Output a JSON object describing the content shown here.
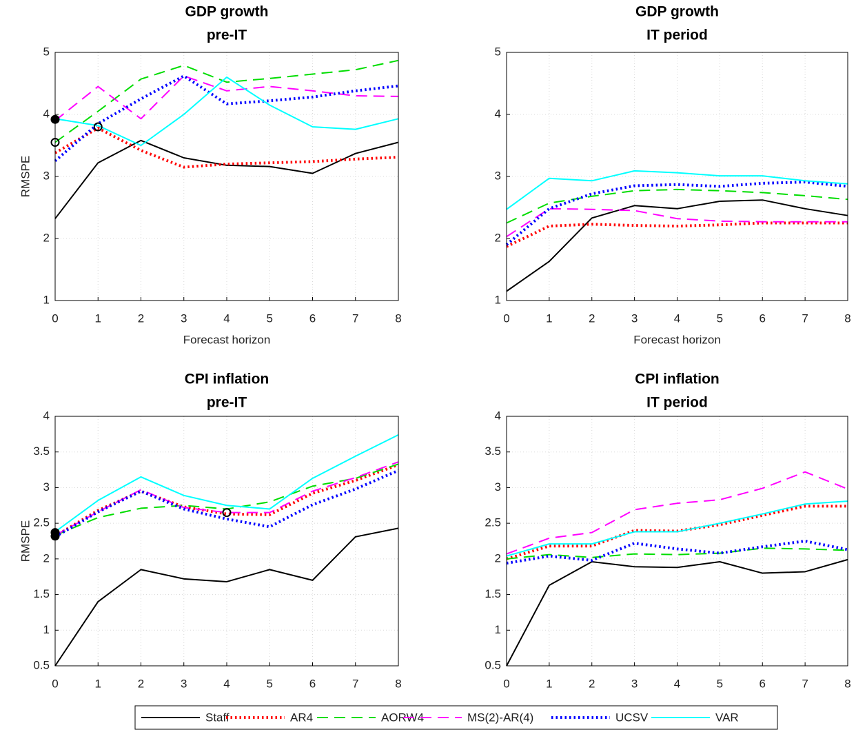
{
  "chart_data": [
    {
      "type": "line",
      "title": "GDP growth",
      "subtitle": "pre-IT",
      "xlabel": "Forecast horizon",
      "ylabel": "RMSPE",
      "x": [
        0,
        1,
        2,
        3,
        4,
        5,
        6,
        7,
        8
      ],
      "xlim": [
        0,
        8
      ],
      "xticks": [
        0,
        1,
        2,
        3,
        4,
        5,
        6,
        7,
        8
      ],
      "ylim": [
        1,
        5
      ],
      "yticks": [
        1,
        2,
        3,
        4,
        5
      ],
      "grid": true,
      "series": [
        {
          "values": [
            2.32,
            3.22,
            3.58,
            3.3,
            3.18,
            3.16,
            3.05,
            3.37,
            3.55
          ]
        },
        {
          "values": [
            3.38,
            3.78,
            3.42,
            3.15,
            3.2,
            3.22,
            3.24,
            3.28,
            3.31
          ]
        },
        {
          "values": [
            3.55,
            4.05,
            4.57,
            4.79,
            4.52,
            4.58,
            4.65,
            4.72,
            4.87
          ]
        },
        {
          "values": [
            3.9,
            4.45,
            3.93,
            4.62,
            4.38,
            4.45,
            4.38,
            4.3,
            4.29
          ]
        },
        {
          "values": [
            3.25,
            3.85,
            4.25,
            4.62,
            4.17,
            4.22,
            4.28,
            4.38,
            4.46
          ]
        },
        {
          "values": [
            3.93,
            3.82,
            3.5,
            4.0,
            4.6,
            4.15,
            3.8,
            3.76,
            3.93
          ]
        }
      ],
      "markers": [
        {
          "x": 0,
          "y": 3.92,
          "filled": true
        },
        {
          "x": 0,
          "y": 3.55,
          "filled": false
        },
        {
          "x": 1,
          "y": 3.8,
          "filled": false
        }
      ]
    },
    {
      "type": "line",
      "title": "GDP growth",
      "subtitle": "IT period",
      "xlabel": "Forecast horizon",
      "x": [
        0,
        1,
        2,
        3,
        4,
        5,
        6,
        7,
        8
      ],
      "xlim": [
        0,
        8
      ],
      "xticks": [
        0,
        1,
        2,
        3,
        4,
        5,
        6,
        7,
        8
      ],
      "ylim": [
        1,
        5
      ],
      "yticks": [
        1,
        2,
        3,
        4,
        5
      ],
      "grid": true,
      "series": [
        {
          "values": [
            1.15,
            1.63,
            2.33,
            2.53,
            2.48,
            2.6,
            2.62,
            2.48,
            2.37
          ]
        },
        {
          "values": [
            1.87,
            2.2,
            2.23,
            2.21,
            2.2,
            2.22,
            2.25,
            2.25,
            2.25
          ]
        },
        {
          "values": [
            2.25,
            2.57,
            2.68,
            2.77,
            2.79,
            2.77,
            2.74,
            2.69,
            2.63
          ]
        },
        {
          "values": [
            2.03,
            2.48,
            2.47,
            2.45,
            2.32,
            2.28,
            2.27,
            2.27,
            2.27
          ]
        },
        {
          "values": [
            1.9,
            2.48,
            2.72,
            2.85,
            2.87,
            2.84,
            2.89,
            2.91,
            2.84
          ]
        },
        {
          "values": [
            2.47,
            2.97,
            2.93,
            3.09,
            3.06,
            3.01,
            3.01,
            2.93,
            2.88
          ]
        }
      ]
    },
    {
      "type": "line",
      "title": "CPI inflation",
      "subtitle": "pre-IT",
      "ylabel": "RMSPE",
      "x": [
        0,
        1,
        2,
        3,
        4,
        5,
        6,
        7,
        8
      ],
      "xlim": [
        0,
        8
      ],
      "xticks": [
        0,
        1,
        2,
        3,
        4,
        5,
        6,
        7,
        8
      ],
      "ylim": [
        0.5,
        4
      ],
      "yticks": [
        0.5,
        1,
        1.5,
        2,
        2.5,
        3,
        3.5,
        4
      ],
      "grid": true,
      "series": [
        {
          "values": [
            0.5,
            1.4,
            1.85,
            1.72,
            1.68,
            1.85,
            1.7,
            2.31,
            2.43
          ]
        },
        {
          "values": [
            2.32,
            2.68,
            2.95,
            2.73,
            2.63,
            2.62,
            2.92,
            3.1,
            3.32
          ]
        },
        {
          "values": [
            2.33,
            2.58,
            2.71,
            2.75,
            2.7,
            2.8,
            3.02,
            3.13,
            3.33
          ]
        },
        {
          "values": [
            2.33,
            2.66,
            2.97,
            2.72,
            2.65,
            2.65,
            2.95,
            3.14,
            3.36
          ]
        },
        {
          "values": [
            2.31,
            2.66,
            2.95,
            2.7,
            2.56,
            2.45,
            2.76,
            2.98,
            3.24
          ]
        },
        {
          "values": [
            2.38,
            2.82,
            3.15,
            2.89,
            2.75,
            2.7,
            3.13,
            3.44,
            3.74
          ]
        }
      ],
      "markers": [
        {
          "x": 0,
          "y": 2.37,
          "filled": true
        },
        {
          "x": 0,
          "y": 2.32,
          "filled": true
        },
        {
          "x": 4,
          "y": 2.65,
          "filled": false
        }
      ]
    },
    {
      "type": "line",
      "title": "CPI inflation",
      "subtitle": "IT period",
      "x": [
        0,
        1,
        2,
        3,
        4,
        5,
        6,
        7,
        8
      ],
      "xlim": [
        0,
        8
      ],
      "xticks": [
        0,
        1,
        2,
        3,
        4,
        5,
        6,
        7,
        8
      ],
      "ylim": [
        0.5,
        4
      ],
      "yticks": [
        0.5,
        1,
        1.5,
        2,
        2.5,
        3,
        3.5,
        4
      ],
      "grid": true,
      "series": [
        {
          "values": [
            0.5,
            1.63,
            1.96,
            1.89,
            1.88,
            1.96,
            1.8,
            1.82,
            1.99
          ]
        },
        {
          "values": [
            2.0,
            2.18,
            2.18,
            2.4,
            2.39,
            2.48,
            2.61,
            2.74,
            2.74
          ]
        },
        {
          "values": [
            2.0,
            2.06,
            2.02,
            2.07,
            2.06,
            2.08,
            2.15,
            2.14,
            2.12
          ]
        },
        {
          "values": [
            2.07,
            2.29,
            2.37,
            2.69,
            2.78,
            2.83,
            2.99,
            3.22,
            2.98
          ]
        },
        {
          "values": [
            1.94,
            2.04,
            1.98,
            2.22,
            2.14,
            2.08,
            2.17,
            2.25,
            2.13
          ]
        },
        {
          "values": [
            2.04,
            2.21,
            2.21,
            2.38,
            2.38,
            2.5,
            2.63,
            2.77,
            2.81
          ]
        }
      ]
    }
  ],
  "legend": [
    {
      "name": "Staff",
      "color": "#000000",
      "style": "solid"
    },
    {
      "name": "AR4",
      "color": "#ff0000",
      "style": "dotted"
    },
    {
      "name": "AORW4",
      "color": "#00dd00",
      "style": "dashed"
    },
    {
      "name": "MS(2)-AR(4)",
      "color": "#ff00ff",
      "style": "dashed"
    },
    {
      "name": "UCSV",
      "color": "#0000ff",
      "style": "dotted"
    },
    {
      "name": "VAR",
      "color": "#00ffff",
      "style": "solid"
    }
  ]
}
